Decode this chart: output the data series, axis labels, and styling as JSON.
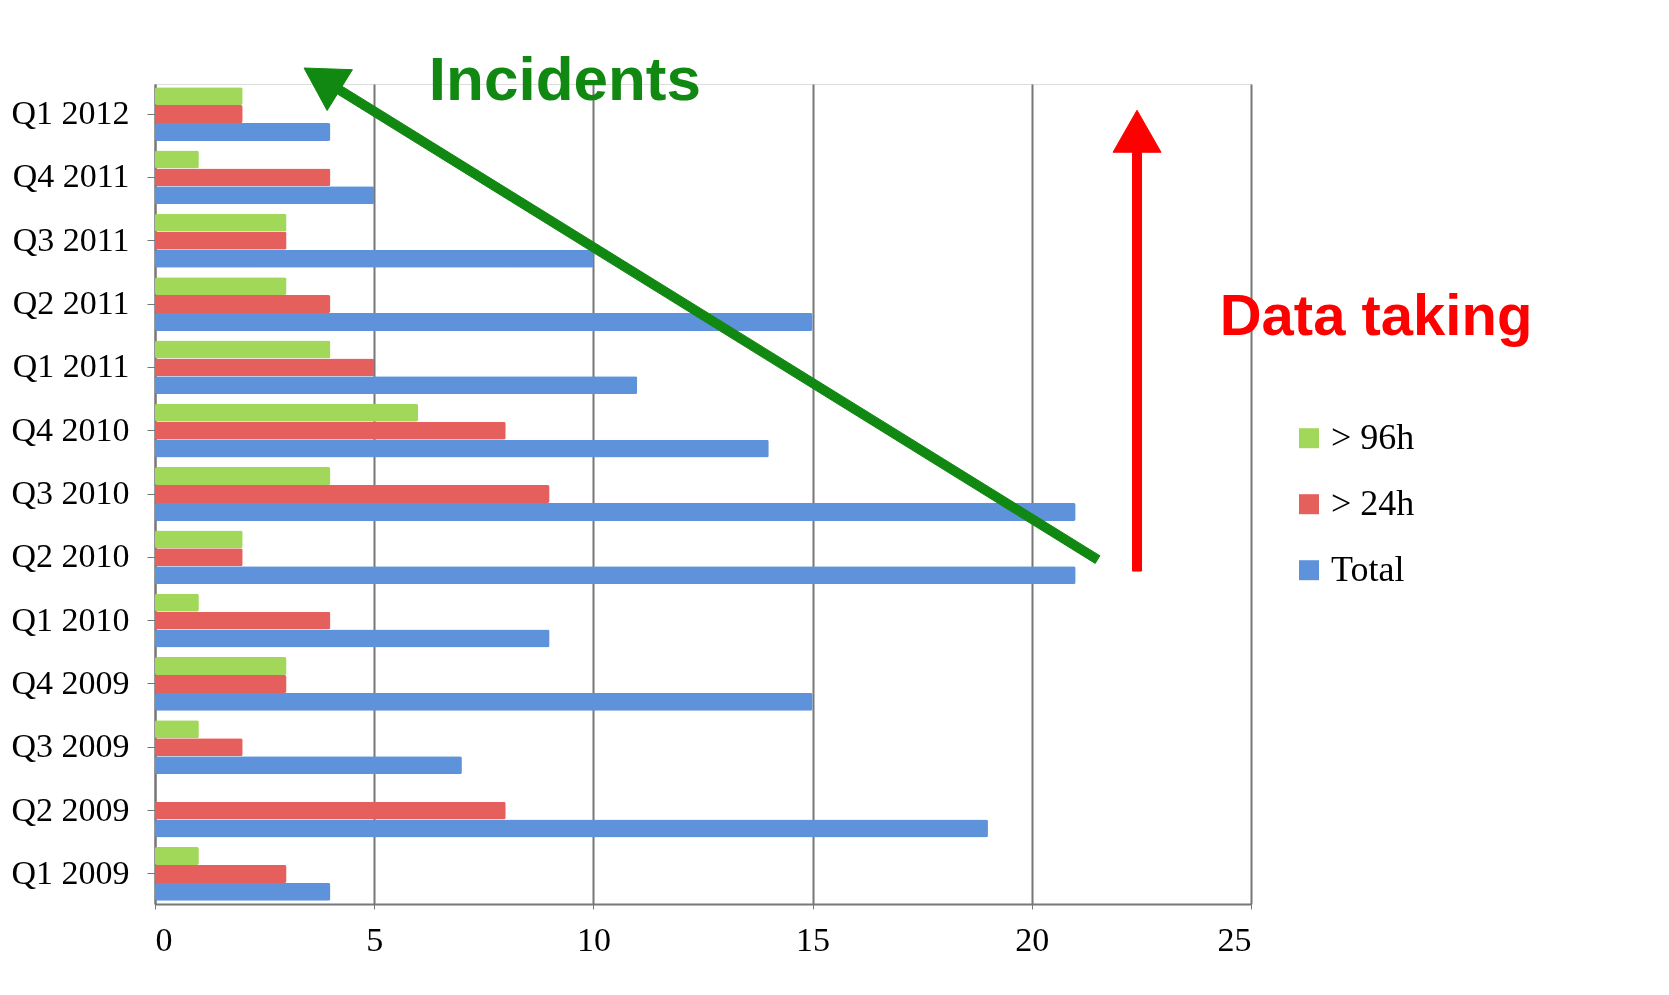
{
  "chart_data": {
    "type": "bar",
    "orientation": "horizontal",
    "categories": [
      "Q1 2012",
      "Q4 2011",
      "Q3 2011",
      "Q2 2011",
      "Q1 2011",
      "Q4 2010",
      "Q3 2010",
      "Q2 2010",
      "Q1 2010",
      "Q4 2009",
      "Q3 2009",
      "Q2 2009",
      "Q1 2009"
    ],
    "series": [
      {
        "name": "> 96h",
        "color": "#a2d85a",
        "values": [
          2,
          1,
          3,
          3,
          4,
          6,
          4,
          2,
          1,
          3,
          1,
          0,
          1
        ]
      },
      {
        "name": "> 24h",
        "color": "#e5605c",
        "values": [
          2,
          4,
          3,
          4,
          5,
          8,
          9,
          2,
          4,
          3,
          2,
          8,
          3
        ]
      },
      {
        "name": "Total",
        "color": "#5e93dc",
        "values": [
          4,
          5,
          10,
          15,
          11,
          14,
          21,
          21,
          9,
          15,
          7,
          19,
          4
        ]
      }
    ],
    "xlim": [
      0,
      25
    ],
    "xticks": [
      0,
      5,
      10,
      15,
      20,
      25
    ],
    "grid": "x",
    "legend": "right",
    "annotations": [
      "Incidents",
      "Data taking"
    ]
  }
}
